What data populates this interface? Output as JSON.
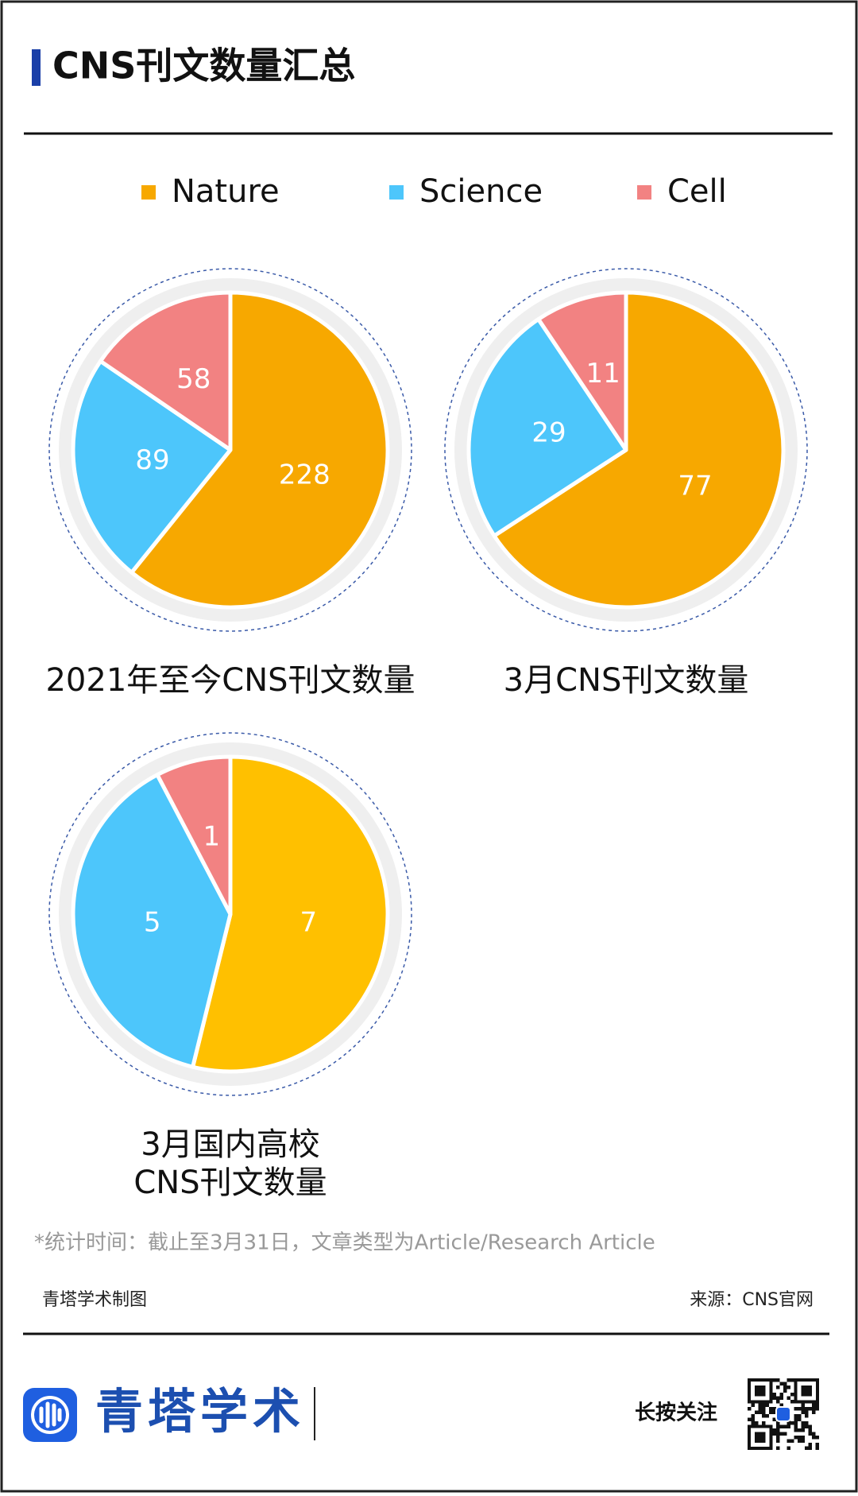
{
  "title": "CNS刊文数量汇总",
  "chart_data": [
    {
      "type": "pie",
      "title": "2021年至今CNS刊文数量",
      "categories": [
        "Nature",
        "Science",
        "Cell"
      ],
      "values": [
        228,
        89,
        58
      ],
      "colors": [
        "#f7a800",
        "#4dc6fb",
        "#f28282"
      ]
    },
    {
      "type": "pie",
      "title": "3月CNS刊文数量",
      "categories": [
        "Nature",
        "Science",
        "Cell"
      ],
      "values": [
        77,
        29,
        11
      ],
      "colors": [
        "#f7a800",
        "#4dc6fb",
        "#f28282"
      ]
    },
    {
      "type": "pie",
      "title": [
        "3月国内高校",
        "CNS刊文数量"
      ],
      "categories": [
        "Nature",
        "Science",
        "Cell"
      ],
      "values": [
        7,
        5,
        1
      ],
      "colors": [
        "#ffc000",
        "#4dc6fb",
        "#f28282"
      ]
    }
  ],
  "footnote": "*统计时间：截止至3月31日，文章类型为Article/Research Article",
  "credit": "青塔学术制图",
  "source": "来源：CNS官网",
  "brand": "青塔学术",
  "follow": "长按关注"
}
